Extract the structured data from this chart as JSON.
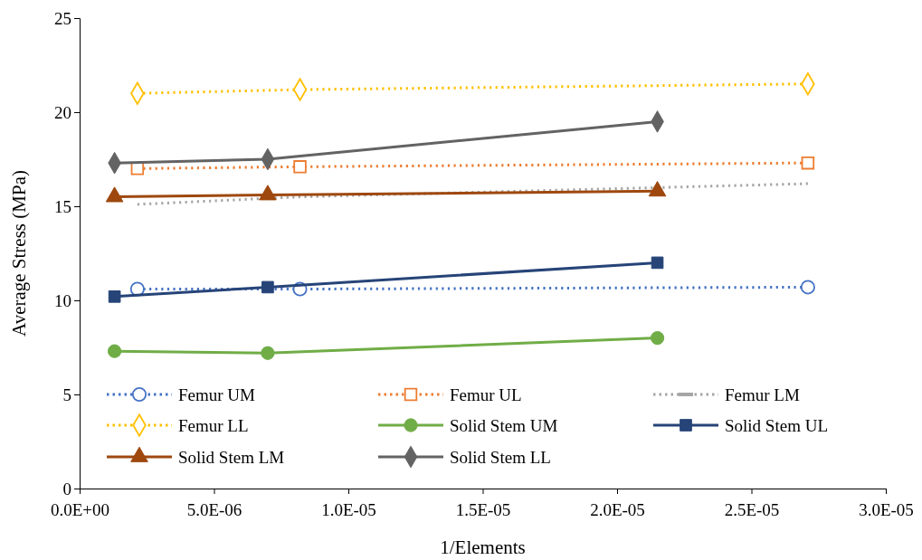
{
  "chart_data": {
    "type": "line",
    "xlabel": "1/Elements",
    "ylabel": "Average Stress (MPa)",
    "xlim": [
      0,
      3e-05
    ],
    "xticks": [
      {
        "value": 0,
        "label": "0.0E+00"
      },
      {
        "value": 5e-06,
        "label": "5.0E-06"
      },
      {
        "value": 1e-05,
        "label": "1.0E-05"
      },
      {
        "value": 1.5e-05,
        "label": "1.5E-05"
      },
      {
        "value": 2e-05,
        "label": "2.0E-05"
      },
      {
        "value": 2.5e-05,
        "label": "2.5E-05"
      },
      {
        "value": 3e-05,
        "label": "3.0E-05"
      }
    ],
    "ylim": [
      0,
      25
    ],
    "yticks": [
      0,
      5,
      10,
      15,
      20,
      25
    ],
    "grid": false,
    "legend": "bottom",
    "series": [
      {
        "name": "Femur UM",
        "color": "#4472c4",
        "marker": "circle",
        "line_style": "dotted",
        "x": [
          2.15e-06,
          8.2e-06,
          2.71e-05
        ],
        "values": [
          10.6,
          10.6,
          10.7
        ]
      },
      {
        "name": "Femur UL",
        "color": "#ed7d31",
        "marker": "square",
        "line_style": "dotted",
        "x": [
          2.15e-06,
          8.2e-06,
          2.71e-05
        ],
        "values": [
          17.0,
          17.1,
          17.3
        ]
      },
      {
        "name": "Femur LM",
        "color": "#a5a5a5",
        "marker": "none",
        "line_style": "dotted",
        "x": [
          2.15e-06,
          8.2e-06,
          2.71e-05
        ],
        "values": [
          15.1,
          15.5,
          16.2
        ]
      },
      {
        "name": "Femur LL",
        "color": "#ffc000",
        "marker": "diamond",
        "line_style": "dotted",
        "x": [
          2.15e-06,
          8.2e-06,
          2.71e-05
        ],
        "values": [
          21.0,
          21.2,
          21.5
        ]
      },
      {
        "name": "Solid Stem UM",
        "color": "#70ad47",
        "marker": "circle",
        "line_style": "solid",
        "x": [
          1.3e-06,
          7e-06,
          2.15e-05
        ],
        "values": [
          7.3,
          7.2,
          8.0
        ]
      },
      {
        "name": "Solid Stem UL",
        "color": "#264478",
        "marker": "square",
        "line_style": "solid",
        "x": [
          1.3e-06,
          7e-06,
          2.15e-05
        ],
        "values": [
          10.2,
          10.7,
          12.0
        ]
      },
      {
        "name": "Solid Stem LM",
        "color": "#9e480e",
        "marker": "triangle",
        "line_style": "solid",
        "x": [
          1.3e-06,
          7e-06,
          2.15e-05
        ],
        "values": [
          15.5,
          15.6,
          15.8
        ]
      },
      {
        "name": "Solid Stem LL",
        "color": "#636363",
        "marker": "diamond",
        "line_style": "solid",
        "x": [
          1.3e-06,
          7e-06,
          2.15e-05
        ],
        "values": [
          17.3,
          17.5,
          19.5
        ]
      }
    ]
  }
}
